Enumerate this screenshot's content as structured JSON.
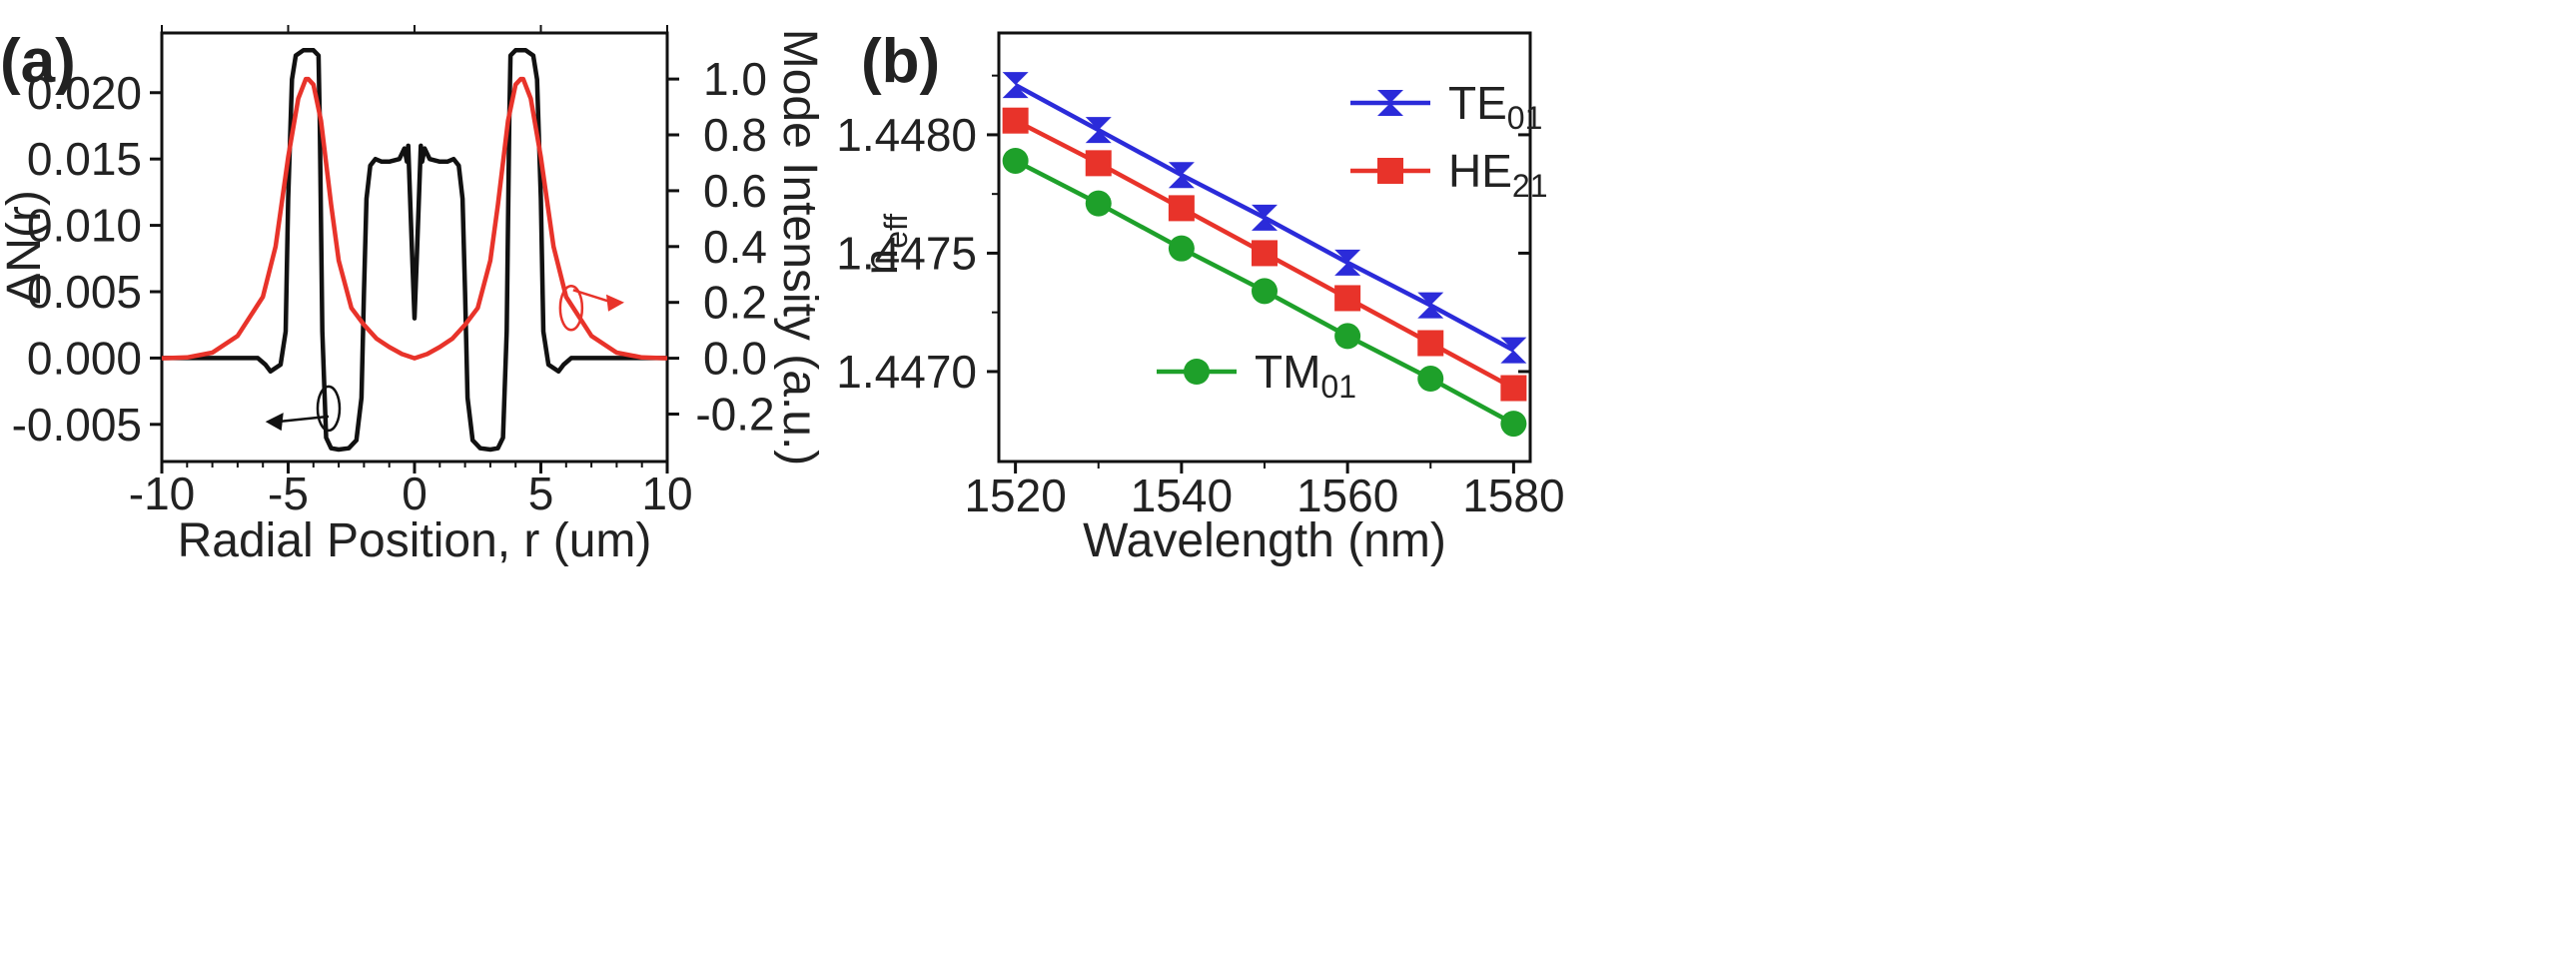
{
  "colors": {
    "black": "#111111",
    "red": "#e8332a",
    "blue": "#2b2bd9",
    "green": "#1ea02a"
  },
  "chart_data": [
    {
      "panel": "(a)",
      "type": "line",
      "xlabel": "Radial Position, r (um)",
      "ylabel_left": "ΔN(r)",
      "ylabel_right": "Mode Intensity (a.u.)",
      "xlim": [
        -10,
        10
      ],
      "ylim_left": [
        -0.0078,
        0.0245
      ],
      "ylim_right": [
        -0.37,
        1.165
      ],
      "xticks": [
        -10,
        -5,
        0,
        5,
        10
      ],
      "xtick_labels": [
        "-10",
        "-5",
        "0",
        "5",
        "10"
      ],
      "yticks_left": [
        -0.005,
        0.0,
        0.005,
        0.01,
        0.015,
        0.02
      ],
      "ytick_labels_left": [
        "-0.005",
        "0.000",
        "0.005",
        "0.010",
        "0.015",
        "0.020"
      ],
      "yticks_right": [
        -0.2,
        0.0,
        0.2,
        0.4,
        0.6,
        0.8,
        1.0
      ],
      "ytick_labels_right": [
        "-0.2",
        "0.0",
        "0.2",
        "0.4",
        "0.6",
        "0.8",
        "1.0"
      ],
      "series": [
        {
          "name": "ΔN(r)",
          "axis": "left",
          "color": "#111111",
          "x": [
            -10,
            -6.2,
            -5.9,
            -5.7,
            -5.3,
            -5.1,
            -5.0,
            -4.85,
            -4.7,
            -4.4,
            -4.0,
            -3.8,
            -3.75,
            -3.65,
            -3.5,
            -3.3,
            -3.0,
            -2.6,
            -2.3,
            -2.1,
            -2.0,
            -1.9,
            -1.75,
            -1.55,
            -1.3,
            -1.0,
            -0.6,
            -0.4,
            -0.3,
            -0.25,
            -0.1,
            0.0,
            0.1,
            0.25,
            0.3,
            0.4,
            0.6,
            1.0,
            1.3,
            1.55,
            1.75,
            1.9,
            2.0,
            2.1,
            2.3,
            2.6,
            3.0,
            3.3,
            3.5,
            3.65,
            3.75,
            3.8,
            4.0,
            4.4,
            4.7,
            4.85,
            5.0,
            5.1,
            5.3,
            5.7,
            5.9,
            6.2,
            10
          ],
          "y": [
            0.0,
            0.0,
            -0.0005,
            -0.001,
            -0.0005,
            0.002,
            0.012,
            0.021,
            0.0228,
            0.0232,
            0.0232,
            0.0228,
            0.018,
            0.002,
            -0.006,
            -0.0068,
            -0.0069,
            -0.0068,
            -0.0062,
            -0.003,
            0.005,
            0.012,
            0.0145,
            0.015,
            0.0148,
            0.0148,
            0.015,
            0.0158,
            0.0148,
            0.016,
            0.008,
            0.003,
            0.008,
            0.016,
            0.0148,
            0.0158,
            0.015,
            0.0148,
            0.0148,
            0.015,
            0.0145,
            0.012,
            0.005,
            -0.003,
            -0.0062,
            -0.0068,
            -0.0069,
            -0.0068,
            -0.006,
            0.002,
            0.018,
            0.0228,
            0.0232,
            0.0232,
            0.0228,
            0.021,
            0.012,
            0.002,
            -0.0005,
            -0.001,
            -0.0005,
            0.0,
            0.0
          ]
        },
        {
          "name": "Mode Intensity",
          "axis": "right",
          "color": "#e8332a",
          "x": [
            -10,
            -9,
            -8,
            -7,
            -6,
            -5.5,
            -5,
            -4.6,
            -4.3,
            -4.2,
            -4.0,
            -3.7,
            -3.3,
            -3.0,
            -2.5,
            -2.0,
            -1.5,
            -1.0,
            -0.5,
            0.0,
            0.5,
            1.0,
            1.5,
            2.0,
            2.5,
            3.0,
            3.3,
            3.7,
            4.0,
            4.2,
            4.3,
            4.6,
            5.0,
            5.5,
            6.0,
            7.0,
            8.0,
            9.0,
            10.0
          ],
          "y": [
            0.0,
            0.003,
            0.02,
            0.08,
            0.22,
            0.4,
            0.72,
            0.93,
            1.0,
            1.0,
            0.98,
            0.85,
            0.55,
            0.35,
            0.18,
            0.12,
            0.07,
            0.04,
            0.015,
            0.0,
            0.015,
            0.04,
            0.07,
            0.12,
            0.18,
            0.35,
            0.55,
            0.85,
            0.98,
            1.0,
            1.0,
            0.93,
            0.72,
            0.4,
            0.22,
            0.08,
            0.02,
            0.003,
            0.0
          ]
        }
      ],
      "annotations": [
        {
          "type": "ellipse-arrow",
          "target": "left axis",
          "at_x": -3.4,
          "at_y": -0.0038,
          "arrow_to_x": -5.9,
          "arrow_to_y": -0.0048
        },
        {
          "type": "ellipse-arrow",
          "target": "right axis",
          "at_x": 6.2,
          "at_y_right": 0.18,
          "arrow_to_x": 8.3,
          "arrow_to_y_right": 0.2
        }
      ]
    },
    {
      "panel": "(b)",
      "type": "line",
      "xlabel": "Wavelength (nm)",
      "ylabel": "n",
      "ylabel_sub": "eff",
      "xlim": [
        1518,
        1582
      ],
      "ylim": [
        1.44662,
        1.44843
      ],
      "xticks": [
        1520,
        1540,
        1560,
        1580
      ],
      "xtick_labels": [
        "1520",
        "1540",
        "1560",
        "1580"
      ],
      "yticks": [
        1.447,
        1.4475,
        1.448
      ],
      "ytick_labels": [
        "1.4470",
        "1.4475",
        "1.4480"
      ],
      "x": [
        1520,
        1530,
        1540,
        1550,
        1560,
        1570,
        1580
      ],
      "series": [
        {
          "name": "TE",
          "sub": "01",
          "color": "#2b2bd9",
          "marker": "hourglass",
          "values": [
            1.44821,
            1.44802,
            1.44783,
            1.44765,
            1.44746,
            1.44728,
            1.44709
          ]
        },
        {
          "name": "HE",
          "sub": "21",
          "color": "#e8332a",
          "marker": "square",
          "values": [
            1.44806,
            1.44788,
            1.44769,
            1.4475,
            1.44731,
            1.44712,
            1.44693
          ]
        },
        {
          "name": "TM",
          "sub": "01",
          "color": "#1ea02a",
          "marker": "circle",
          "values": [
            1.44789,
            1.44771,
            1.44752,
            1.44734,
            1.44715,
            1.44697,
            1.44678
          ]
        }
      ],
      "legend": "inside"
    }
  ]
}
